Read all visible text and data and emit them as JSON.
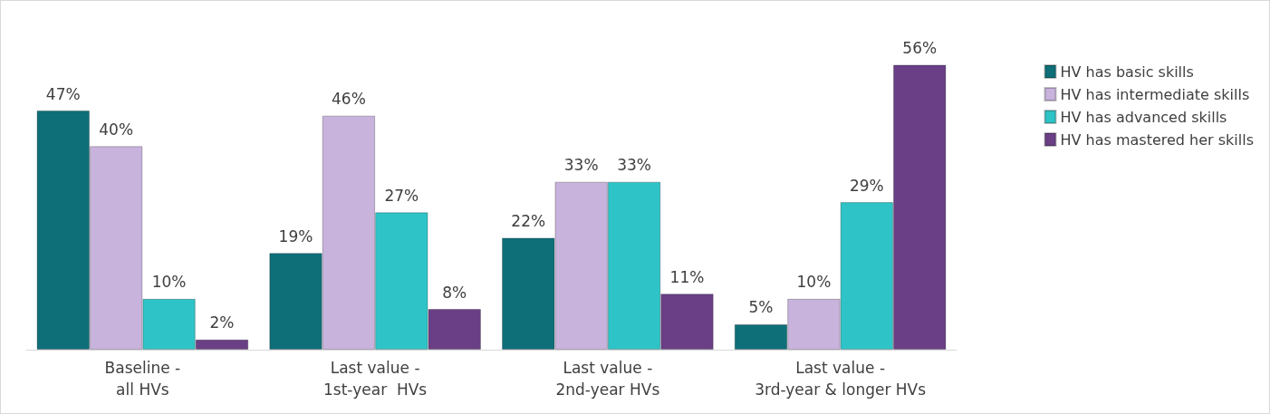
{
  "chart_data": {
    "type": "bar",
    "categories": [
      "Baseline -\nall HVs",
      "Last value -\n1st-year  HVs",
      "Last value -\n2nd-year HVs",
      "Last value -\n3rd-year & longer HVs"
    ],
    "series": [
      {
        "name": "HV has basic skills",
        "color": "#0e6f79",
        "values": [
          47,
          19,
          22,
          5
        ],
        "value_labels": [
          "47%",
          "19%",
          "22%",
          "5%"
        ]
      },
      {
        "name": "HV has intermediate skills",
        "color": "#c8b3dd",
        "values": [
          40,
          46,
          33,
          10
        ],
        "value_labels": [
          "40%",
          "46%",
          "33%",
          "10%"
        ]
      },
      {
        "name": "HV has advanced skills",
        "color": "#2ec3c7",
        "values": [
          10,
          27,
          33,
          29
        ],
        "value_labels": [
          "10%",
          "27%",
          "33%",
          "29%"
        ]
      },
      {
        "name": "HV has mastered her skills",
        "color": "#6a3f86",
        "values": [
          2,
          8,
          11,
          56
        ],
        "value_labels": [
          "2%",
          "8%",
          "11%",
          "56%"
        ]
      }
    ],
    "legend": "right"
  }
}
